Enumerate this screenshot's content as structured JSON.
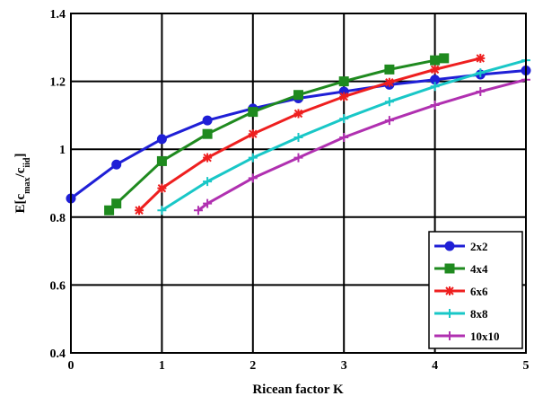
{
  "chart_data": {
    "type": "line",
    "xlabel": "Ricean factor K",
    "ylabel": "E[c",
    "ylabel_sub1": "max",
    "ylabel_mid": "/c",
    "ylabel_sub2": "iid",
    "ylabel_end": "]",
    "xlim": [
      0,
      5
    ],
    "ylim": [
      0.4,
      1.4
    ],
    "x_ticks": [
      "0",
      "1",
      "2",
      "3",
      "4",
      "5"
    ],
    "y_ticks": [
      "0.4",
      "0.6",
      "0.8",
      "1",
      "1.2",
      "1.4"
    ],
    "grid": true,
    "legend_placement": "bottom-right",
    "series": [
      {
        "name": "2x2",
        "color": "#1f1fd6",
        "marker": "circle",
        "x": [
          0,
          0.5,
          1,
          1.5,
          2,
          2.5,
          3,
          3.5,
          4,
          4.5,
          5
        ],
        "y": [
          0.855,
          0.955,
          1.03,
          1.085,
          1.12,
          1.15,
          1.17,
          1.19,
          1.205,
          1.22,
          1.232
        ]
      },
      {
        "name": "4x4",
        "color": "#1f8a1f",
        "marker": "square",
        "x": [
          0.42,
          0.5,
          1,
          1.5,
          2,
          2.5,
          3,
          3.5,
          4,
          4.1
        ],
        "y": [
          0.82,
          0.84,
          0.965,
          1.045,
          1.11,
          1.16,
          1.2,
          1.235,
          1.262,
          1.268
        ]
      },
      {
        "name": "6x6",
        "color": "#ee1f1f",
        "marker": "star",
        "x": [
          0.75,
          1,
          1.5,
          2,
          2.5,
          3,
          3.5,
          4,
          4.5
        ],
        "y": [
          0.82,
          0.885,
          0.975,
          1.045,
          1.105,
          1.155,
          1.197,
          1.235,
          1.268
        ]
      },
      {
        "name": "8x8",
        "color": "#19c7c7",
        "marker": "plus",
        "x": [
          1,
          1.5,
          2,
          2.5,
          3,
          3.5,
          4,
          4.5,
          5
        ],
        "y": [
          0.82,
          0.905,
          0.975,
          1.035,
          1.09,
          1.14,
          1.185,
          1.225,
          1.262
        ]
      },
      {
        "name": "10x10",
        "color": "#b030b0",
        "marker": "plus",
        "x": [
          1.4,
          1.5,
          2,
          2.5,
          3,
          3.5,
          4,
          4.5,
          5
        ],
        "y": [
          0.82,
          0.84,
          0.915,
          0.975,
          1.035,
          1.085,
          1.13,
          1.17,
          1.205
        ]
      }
    ]
  }
}
